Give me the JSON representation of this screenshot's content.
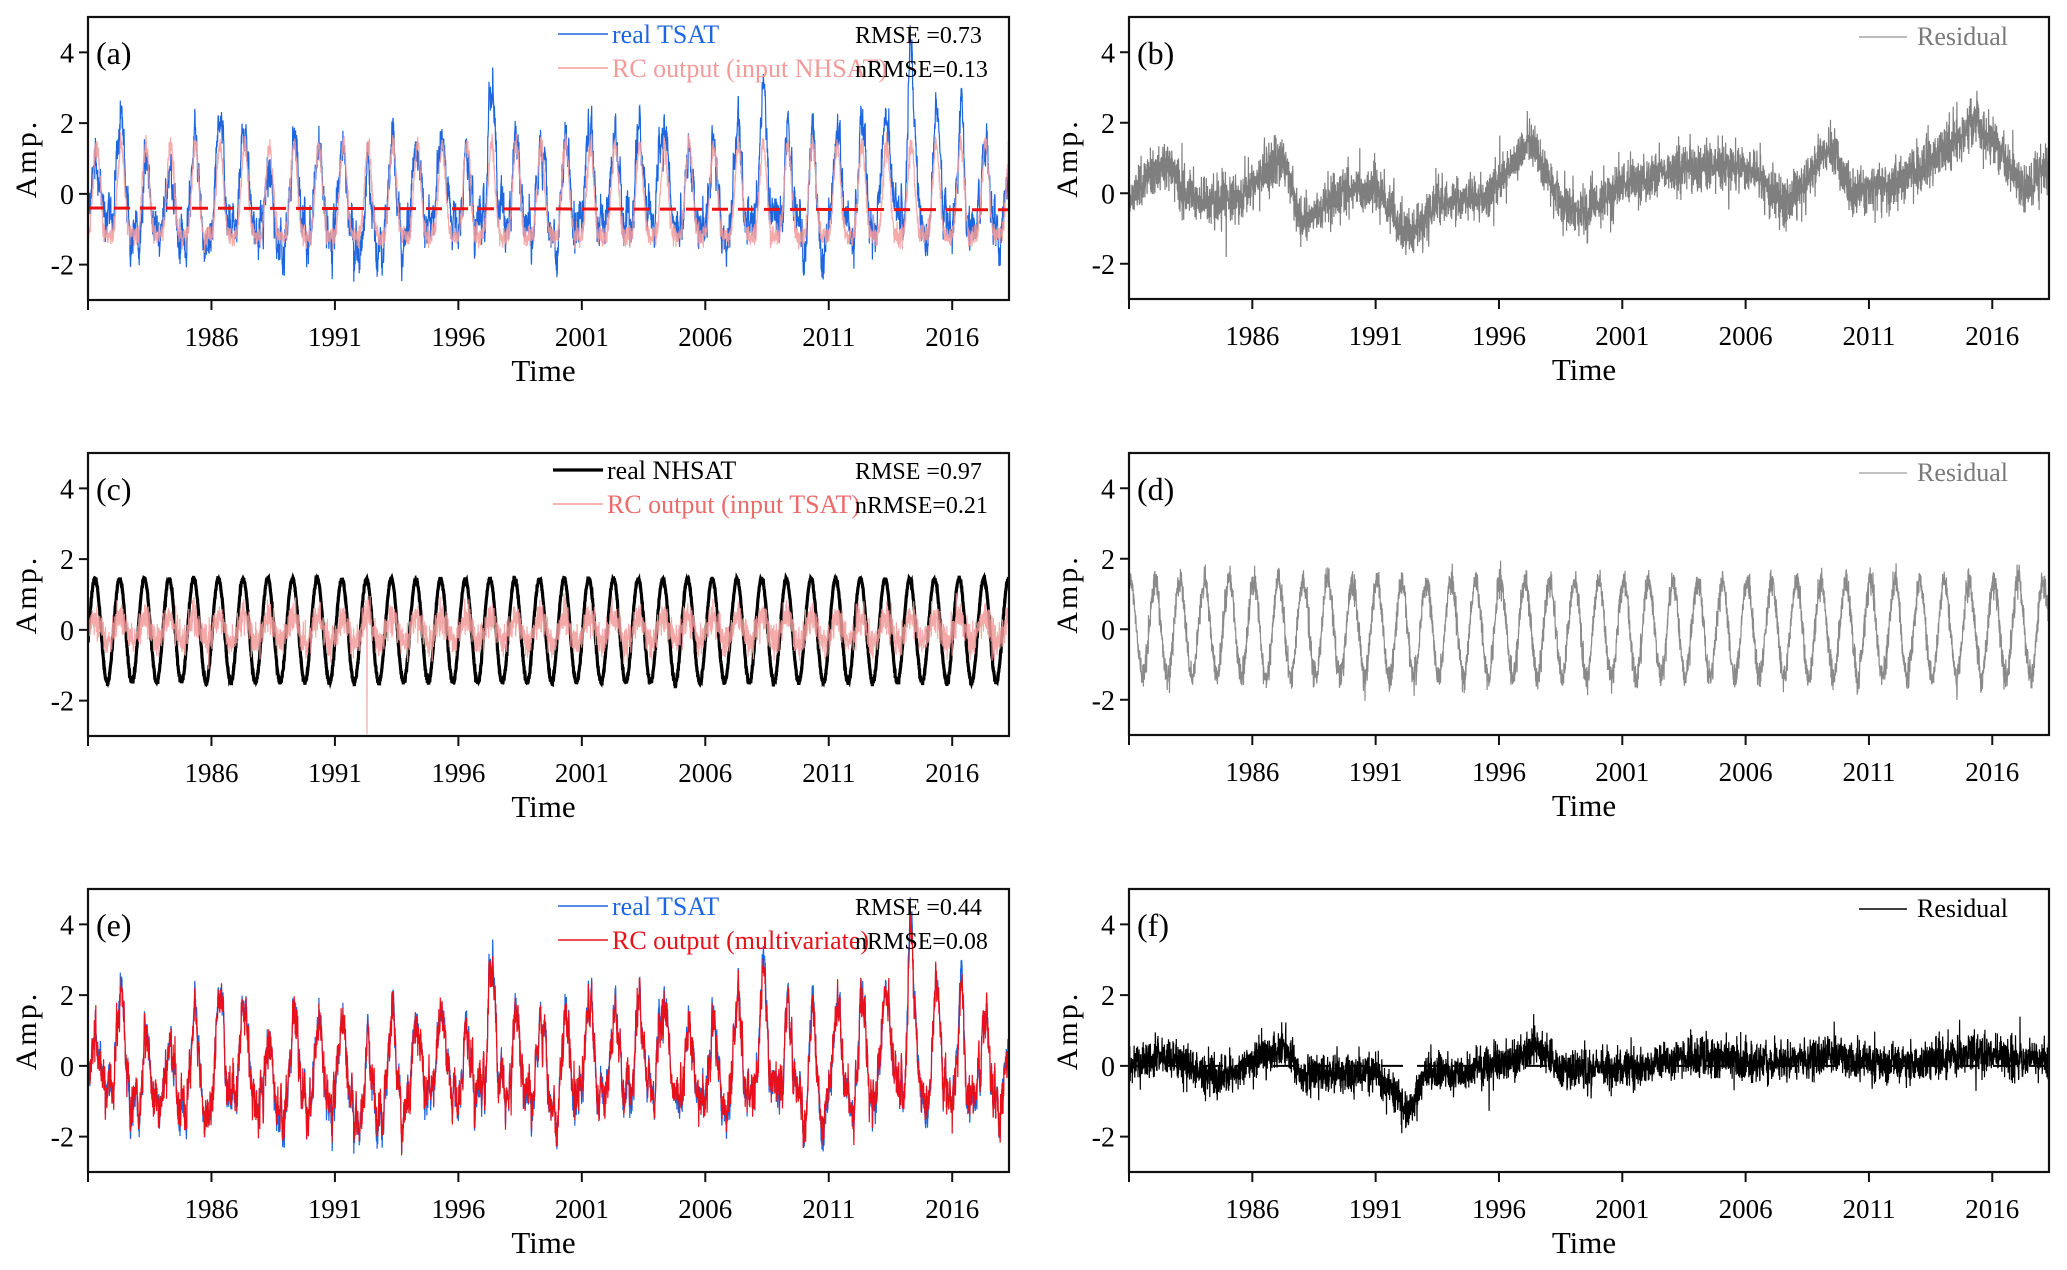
{
  "chart_data": [
    {
      "id": "a",
      "type": "line",
      "panel_label": "(a)",
      "xlabel": "Time",
      "ylabel": "Amp.",
      "xlim": [
        1981.0,
        2018.3
      ],
      "ylim": [
        -3,
        5
      ],
      "xticks": [
        1986,
        1991,
        1996,
        2001,
        2006,
        2011,
        2016
      ],
      "xtick_labels": [
        "1986",
        "1991",
        "1996",
        "2001",
        "2006",
        "2011",
        "2016"
      ],
      "yticks": [
        -2,
        0,
        2,
        4
      ],
      "ytick_labels": [
        "-2",
        "0",
        "2",
        "4"
      ],
      "legend_position": "top-right",
      "stats": [
        "RMSE =0.73",
        "nRMSE=0.13"
      ],
      "hline": {
        "y": -0.4,
        "y_end": -0.45,
        "color": "#ee1111",
        "style": "dashed"
      },
      "series": [
        {
          "name": "real TSAT",
          "color": "#1e66df",
          "kind": "tsat",
          "annual_peaks": [
            1.4,
            2.0,
            1.0,
            0.7,
            1.6,
            2.2,
            1.9,
            0.9,
            1.9,
            1.7,
            1.6,
            0.6,
            1.4,
            1.4,
            1.5,
            1.6,
            2.9,
            1.3,
            1.4,
            1.8,
            2.0,
            1.8,
            1.6,
            2.4,
            1.7,
            1.5,
            2.3,
            3.2,
            1.5,
            1.8,
            1.5,
            2.2,
            2.0,
            3.4,
            2.2,
            1.9,
            0.9
          ],
          "annual_troughs": [
            -1.3,
            -1.2,
            -1.8,
            -2.2,
            -1.9,
            -1.2,
            -1.5,
            -2.3,
            -1.6,
            -1.6,
            -2.0,
            -2.7,
            -2.0,
            -1.5,
            -1.8,
            -1.6,
            -1.1,
            -1.6,
            -2.1,
            -1.5,
            -1.0,
            -0.9,
            -1.2,
            -0.8,
            -1.2,
            -1.6,
            -1.3,
            -1.1,
            -1.8,
            -2.2,
            -1.3,
            -1.4,
            -1.0,
            -1.2,
            -1.4,
            -1.5,
            -1.2
          ]
        },
        {
          "name": "RC output (input NHSAT)",
          "color": "#f39b9b",
          "kind": "rc_nhsat",
          "annual_peak": 1.4,
          "annual_trough": -1.2
        }
      ]
    },
    {
      "id": "b",
      "type": "line",
      "panel_label": "(b)",
      "xlabel": "Time",
      "ylabel": "Amp.",
      "xlim": [
        1981.0,
        2018.3
      ],
      "ylim": [
        -3,
        5
      ],
      "xticks": [
        1986,
        1991,
        1996,
        2001,
        2006,
        2011,
        2016
      ],
      "xtick_labels": [
        "1986",
        "1991",
        "1996",
        "2001",
        "2006",
        "2011",
        "2016"
      ],
      "yticks": [
        -2,
        0,
        2,
        4
      ],
      "ytick_labels": [
        "-2",
        "0",
        "2",
        "4"
      ],
      "legend_position": "top-right",
      "series": [
        {
          "name": "Residual",
          "color": "#7f7f7f",
          "kind": "residual_trend",
          "anchor_x": [
            1981.0,
            1982.5,
            1983.2,
            1984.5,
            1985.5,
            1987.2,
            1988.0,
            1989.5,
            1991.0,
            1992.3,
            1993.5,
            1995.5,
            1997.3,
            1998.5,
            1999.5,
            2001.0,
            2002.5,
            2004.5,
            2006.5,
            2007.5,
            2009.5,
            2010.2,
            2011.2,
            2013.0,
            2015.3,
            2016.7,
            2017.3,
            2018.3
          ],
          "anchor_y": [
            -0.1,
            0.9,
            0.0,
            -0.3,
            -0.1,
            1.1,
            -0.9,
            0.0,
            0.2,
            -1.2,
            -0.3,
            -0.1,
            1.5,
            -0.3,
            -0.5,
            0.2,
            0.6,
            0.8,
            0.6,
            -0.4,
            1.4,
            0.0,
            0.1,
            0.6,
            2.0,
            0.8,
            0.0,
            0.9
          ],
          "noise": 0.35
        }
      ]
    },
    {
      "id": "c",
      "type": "line",
      "panel_label": "(c)",
      "xlabel": "Time",
      "ylabel": "Amp.",
      "xlim": [
        1981.0,
        2018.3
      ],
      "ylim": [
        -3,
        5
      ],
      "xticks": [
        1986,
        1991,
        1996,
        2001,
        2006,
        2011,
        2016
      ],
      "xtick_labels": [
        "1986",
        "1991",
        "1996",
        "2001",
        "2006",
        "2011",
        "2016"
      ],
      "yticks": [
        -2,
        0,
        2,
        4
      ],
      "ytick_labels": [
        "-2",
        "0",
        "2",
        "4"
      ],
      "legend_position": "top-right",
      "stats": [
        "RMSE =0.97",
        "nRMSE=0.21"
      ],
      "series": [
        {
          "name": "real NHSAT",
          "color": "#000000",
          "kind": "nhsat",
          "amplitude": 1.45,
          "period_years": 1.0
        },
        {
          "name": "RC output (input TSAT)",
          "color": "#f39b9b",
          "kind": "rc_tsat",
          "amplitude": 0.35,
          "spike": {
            "x": 1992.3,
            "y": -2.95
          }
        }
      ]
    },
    {
      "id": "d",
      "type": "line",
      "panel_label": "(d)",
      "xlabel": "Time",
      "ylabel": "Amp.",
      "xlim": [
        1981.0,
        2018.3
      ],
      "ylim": [
        -3,
        5
      ],
      "xticks": [
        1986,
        1991,
        1996,
        2001,
        2006,
        2011,
        2016
      ],
      "xtick_labels": [
        "1986",
        "1991",
        "1996",
        "2001",
        "2006",
        "2011",
        "2016"
      ],
      "yticks": [
        -2,
        0,
        2,
        4
      ],
      "ytick_labels": [
        "-2",
        "0",
        "2",
        "4"
      ],
      "legend_position": "top-right",
      "series": [
        {
          "name": "Residual",
          "color": "#8a8a8a",
          "kind": "residual_periodic",
          "amplitude": 1.35,
          "period_years": 1.0,
          "noise": 0.25
        }
      ]
    },
    {
      "id": "e",
      "type": "line",
      "panel_label": "(e)",
      "xlabel": "Time",
      "ylabel": "Amp.",
      "xlim": [
        1981.0,
        2018.3
      ],
      "ylim": [
        -3,
        5
      ],
      "xticks": [
        1986,
        1991,
        1996,
        2001,
        2006,
        2011,
        2016
      ],
      "xtick_labels": [
        "1986",
        "1991",
        "1996",
        "2001",
        "2006",
        "2011",
        "2016"
      ],
      "yticks": [
        -2,
        0,
        2,
        4
      ],
      "ytick_labels": [
        "-2",
        "0",
        "2",
        "4"
      ],
      "legend_position": "top-right",
      "stats": [
        "RMSE =0.44",
        "nRMSE=0.08"
      ],
      "series": [
        {
          "name": "real TSAT",
          "color": "#1e66df",
          "kind": "tsat"
        },
        {
          "name": "RC output (multivariate)",
          "color": "#e8101a",
          "kind": "rc_multi",
          "offset": 0.12
        }
      ]
    },
    {
      "id": "f",
      "type": "line",
      "panel_label": "(f)",
      "xlabel": "Time",
      "ylabel": "Amp.",
      "xlim": [
        1981.0,
        2018.3
      ],
      "ylim": [
        -3,
        5
      ],
      "xticks": [
        1986,
        1991,
        1996,
        2001,
        2006,
        2011,
        2016
      ],
      "xtick_labels": [
        "1986",
        "1991",
        "1996",
        "2001",
        "2006",
        "2011",
        "2016"
      ],
      "yticks": [
        -2,
        0,
        2,
        4
      ],
      "ytick_labels": [
        "-2",
        "0",
        "2",
        "4"
      ],
      "legend_position": "top-right",
      "hline": {
        "y": 0,
        "y_end": 0,
        "color": "#000000",
        "style": "dashed"
      },
      "series": [
        {
          "name": "Residual",
          "color": "#000000",
          "kind": "residual_trend",
          "anchor_x": [
            1981.0,
            1982.5,
            1984.0,
            1985.0,
            1986.5,
            1987.3,
            1988.0,
            1990.0,
            1991.0,
            1991.8,
            1992.3,
            1993.0,
            1995.0,
            1996.5,
            1997.5,
            1998.5,
            2001.0,
            2004.5,
            2006.0,
            2008.5,
            2009.5,
            2011.0,
            2013.0,
            2015.5,
            2017.0,
            2018.3
          ],
          "anchor_y": [
            0.0,
            0.3,
            -0.2,
            -0.3,
            0.3,
            0.6,
            -0.3,
            -0.2,
            -0.2,
            -0.8,
            -1.4,
            -0.2,
            -0.1,
            0.1,
            0.6,
            -0.1,
            -0.1,
            0.3,
            0.1,
            0.2,
            0.3,
            0.0,
            0.1,
            0.4,
            0.2,
            0.2
          ],
          "noise": 0.28
        }
      ]
    }
  ]
}
